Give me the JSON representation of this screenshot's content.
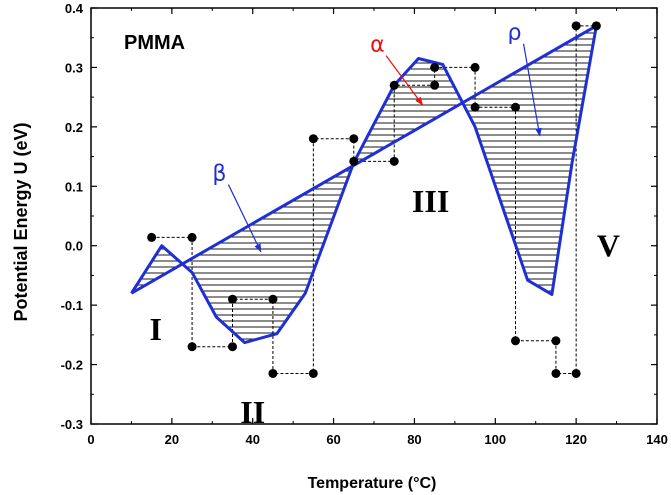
{
  "chart_data": {
    "type": "line",
    "title": "PMMA",
    "xlabel": "Temperature (°C)",
    "ylabel": "Potential Energy U (eV)",
    "xlim": [
      0,
      140
    ],
    "ylim": [
      -0.3,
      0.4
    ],
    "xticks": [
      0,
      20,
      40,
      60,
      80,
      100,
      120,
      140
    ],
    "yticks": [
      -0.3,
      -0.2,
      -0.1,
      0.0,
      0.1,
      0.2,
      0.3,
      0.4
    ],
    "xtick_labels": [
      "0",
      "20",
      "40",
      "60",
      "80",
      "100",
      "120",
      "140"
    ],
    "ytick_labels": [
      "-0.3",
      "-0.2",
      "-0.1",
      "0.0",
      "0.1",
      "0.2",
      "0.3",
      "0.4"
    ],
    "grid": false,
    "colors": {
      "curve": "#1f2fd6",
      "alpha": "#ee1111",
      "markers": "#000000",
      "hatch": "#000000"
    },
    "straight_line": {
      "x": [
        10,
        125
      ],
      "y": [
        -0.08,
        0.37
      ]
    },
    "potential_curve": {
      "x": [
        10,
        17.5,
        25,
        31,
        38,
        46,
        53,
        65,
        75,
        81,
        87,
        95,
        108,
        114,
        119,
        125
      ],
      "y": [
        -0.08,
        0.0,
        -0.045,
        -0.12,
        -0.163,
        -0.148,
        -0.08,
        0.14,
        0.27,
        0.315,
        0.305,
        0.2,
        -0.058,
        -0.082,
        0.14,
        0.37
      ]
    },
    "marker_points": [
      {
        "x": 15,
        "y": 0.014
      },
      {
        "x": 25,
        "y": 0.014
      },
      {
        "x": 25,
        "y": -0.17
      },
      {
        "x": 35,
        "y": -0.17
      },
      {
        "x": 35,
        "y": -0.09
      },
      {
        "x": 45,
        "y": -0.09
      },
      {
        "x": 45,
        "y": -0.215
      },
      {
        "x": 55,
        "y": -0.215
      },
      {
        "x": 55,
        "y": 0.18
      },
      {
        "x": 65,
        "y": 0.18
      },
      {
        "x": 65,
        "y": 0.142
      },
      {
        "x": 75,
        "y": 0.142
      },
      {
        "x": 75,
        "y": 0.27
      },
      {
        "x": 85,
        "y": 0.27
      },
      {
        "x": 85,
        "y": 0.3
      },
      {
        "x": 95,
        "y": 0.3
      },
      {
        "x": 95,
        "y": 0.233
      },
      {
        "x": 105,
        "y": 0.233
      },
      {
        "x": 105,
        "y": -0.16
      },
      {
        "x": 115,
        "y": -0.16
      },
      {
        "x": 115,
        "y": -0.215
      },
      {
        "x": 120,
        "y": -0.215
      },
      {
        "x": 120,
        "y": 0.37
      },
      {
        "x": 125,
        "y": 0.37
      }
    ],
    "steps": {
      "x": [
        15,
        25,
        25,
        35,
        35,
        45,
        45,
        55,
        55,
        65,
        65,
        75,
        75,
        85,
        85,
        95,
        95,
        105,
        105,
        115,
        115,
        120,
        120,
        125
      ],
      "y": [
        0.014,
        0.014,
        -0.17,
        -0.17,
        -0.09,
        -0.09,
        -0.215,
        -0.215,
        0.18,
        0.18,
        0.142,
        0.142,
        0.27,
        0.27,
        0.3,
        0.3,
        0.233,
        0.233,
        -0.16,
        -0.16,
        -0.215,
        -0.215,
        0.37,
        0.37
      ]
    },
    "annotations": [
      {
        "id": "beta",
        "text": "β",
        "x": 33,
        "y": 0.113,
        "arrow_to": [
          42,
          -0.01
        ],
        "color": "#1f2fd6"
      },
      {
        "id": "alpha",
        "text": "α",
        "x": 72,
        "y": 0.33,
        "arrow_to": [
          82,
          0.237
        ],
        "color": "#ee1111"
      },
      {
        "id": "rho",
        "text": "ρ",
        "x": 106,
        "y": 0.35,
        "arrow_to": [
          111,
          0.185
        ],
        "color": "#1f2fd6"
      }
    ],
    "region_labels": [
      {
        "text": "I",
        "x": 16,
        "y": -0.14
      },
      {
        "text": "II",
        "x": 40,
        "y": -0.28
      },
      {
        "text": "III",
        "x": 84,
        "y": 0.075
      },
      {
        "text": "V",
        "x": 128,
        "y": 0.0
      }
    ]
  }
}
